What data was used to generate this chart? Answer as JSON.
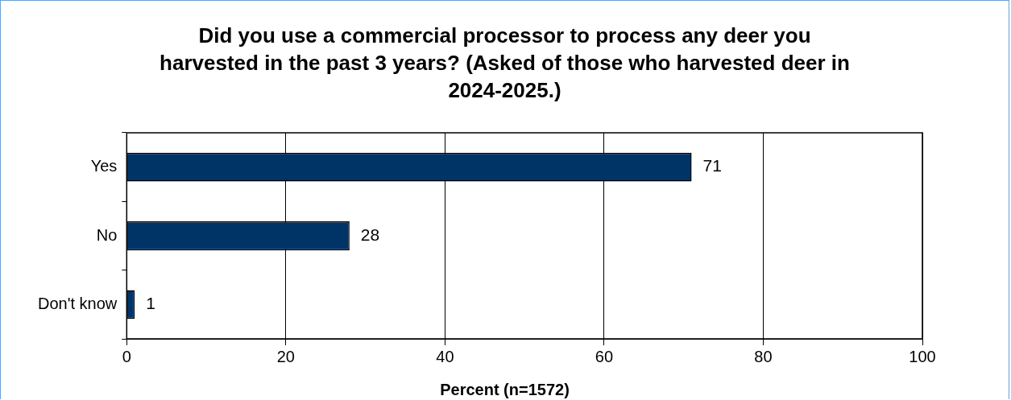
{
  "chart_data": {
    "type": "bar",
    "orientation": "horizontal",
    "title": "Did you use a commercial processor to process any deer you harvested in the past 3 years? (Asked of those who harvested deer in 2024-2025.)",
    "xlabel": "Percent (n=1572)",
    "categories": [
      "Yes",
      "No",
      "Don't know"
    ],
    "values": [
      71,
      28,
      1
    ],
    "color": "#003366",
    "xlim": [
      0,
      100
    ],
    "xticks": [
      0,
      20,
      40,
      60,
      80,
      100
    ],
    "grid": "x",
    "data_labels": true,
    "legend": false
  }
}
